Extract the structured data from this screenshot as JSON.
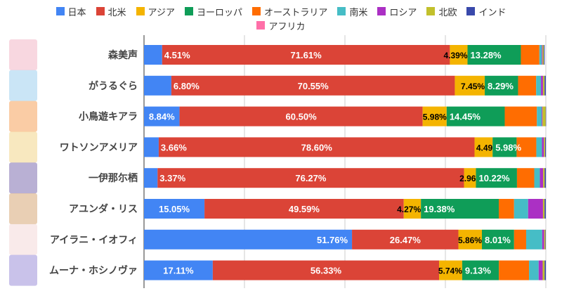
{
  "chart_data": {
    "type": "bar",
    "stacked": true,
    "orientation": "horizontal",
    "categories": [
      "森美声",
      "がうるぐら",
      "小鳥遊キアラ",
      "ワトソンアメリア",
      "一伊那尓栖",
      "アユンダ・リス",
      "アイラニ・イオフィ",
      "ムーナ・ホシノヴァ"
    ],
    "series": [
      {
        "name": "日本",
        "color": "#4285f4",
        "values": [
          4.51,
          6.8,
          8.84,
          3.66,
          3.37,
          15.05,
          51.76,
          17.11
        ]
      },
      {
        "name": "北米",
        "color": "#db4437",
        "values": [
          71.61,
          70.55,
          60.5,
          78.6,
          76.27,
          49.59,
          26.47,
          56.33
        ]
      },
      {
        "name": "アジア",
        "color": "#f4b400",
        "values": [
          4.39,
          7.45,
          5.98,
          4.49,
          2.96,
          4.27,
          5.86,
          5.74
        ]
      },
      {
        "name": "ヨーロッパ",
        "color": "#0f9d58",
        "values": [
          13.28,
          8.29,
          14.45,
          5.98,
          10.22,
          19.38,
          8.01,
          9.13
        ]
      },
      {
        "name": "オーストラリア",
        "color": "#ff6d01",
        "values": [
          4.6,
          4.5,
          8.0,
          4.9,
          4.3,
          3.8,
          3.0,
          7.5
        ]
      },
      {
        "name": "南米",
        "color": "#46bdc6",
        "values": [
          0.6,
          1.2,
          1.2,
          1.4,
          1.4,
          3.5,
          4.0,
          2.4
        ]
      },
      {
        "name": "ロシア",
        "color": "#ab30c4",
        "values": [
          0.2,
          0.5,
          0.2,
          0.5,
          0.8,
          3.7,
          0.5,
          1.0
        ]
      },
      {
        "name": "北欧",
        "color": "#c2c02c",
        "values": [
          0.3,
          0.4,
          0.8,
          0.3,
          0.4,
          0.4,
          0.3,
          0.5
        ]
      },
      {
        "name": "インド",
        "color": "#3949ab",
        "values": [
          0.2,
          0.3,
          0.1,
          0.2,
          0.3,
          0.3,
          0.1,
          0.3
        ]
      }
    ],
    "data_labels": [
      [
        "4.51%",
        "71.61%",
        "4.39%",
        "13.28%"
      ],
      [
        "6.80%",
        "70.55%",
        "7.45%",
        "8.29%"
      ],
      [
        "8.84%",
        "60.50%",
        "5.98%",
        "14.45%"
      ],
      [
        "3.66%",
        "78.60%",
        "4.49",
        "5.98%"
      ],
      [
        "3.37%",
        "76.27%",
        "2.96",
        "10.22%"
      ],
      [
        "15.05%",
        "49.59%",
        "4.27%",
        "19.38%"
      ],
      [
        "51.76%",
        "26.47%",
        "5.86%",
        "8.01%"
      ],
      [
        "17.11%",
        "56.33%",
        "5.74%",
        "9.13%"
      ]
    ],
    "legend_only": [
      {
        "name": "アフリカ",
        "color": "#ff6fa8"
      }
    ],
    "xlim": [
      0,
      100
    ],
    "grid": true,
    "legend_position": "top"
  }
}
